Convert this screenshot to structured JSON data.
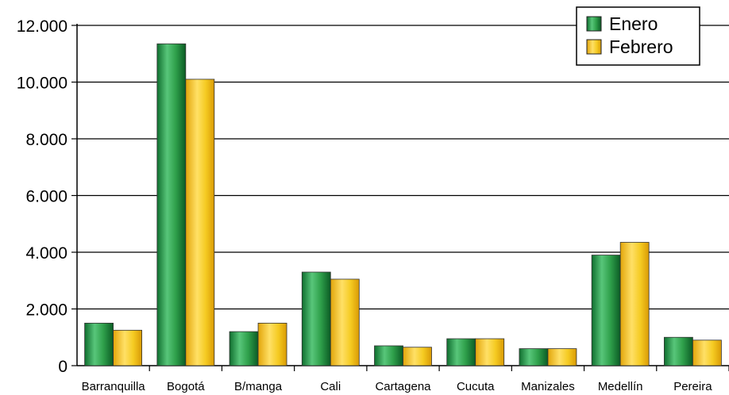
{
  "chart_data": {
    "type": "bar",
    "categories": [
      "Barranquilla",
      "Bogotá",
      "B/manga",
      "Cali",
      "Cartagena",
      "Cucuta",
      "Manizales",
      "Medellín",
      "Pereira"
    ],
    "series": [
      {
        "name": "Enero",
        "values": [
          1500,
          11350,
          1200,
          3300,
          700,
          950,
          600,
          3900,
          1000
        ]
      },
      {
        "name": "Febrero",
        "values": [
          1250,
          10100,
          1500,
          3050,
          650,
          950,
          600,
          4350,
          900
        ]
      }
    ],
    "y_ticks": [
      "0",
      "2.000",
      "4.000",
      "6.000",
      "8.000",
      "10.000",
      "12.000"
    ],
    "ylim": [
      0,
      12000
    ],
    "grid": true,
    "legend_position": "top-right",
    "colors": {
      "Enero": "#2e9a4a",
      "Febrero": "#f2c81e"
    }
  }
}
